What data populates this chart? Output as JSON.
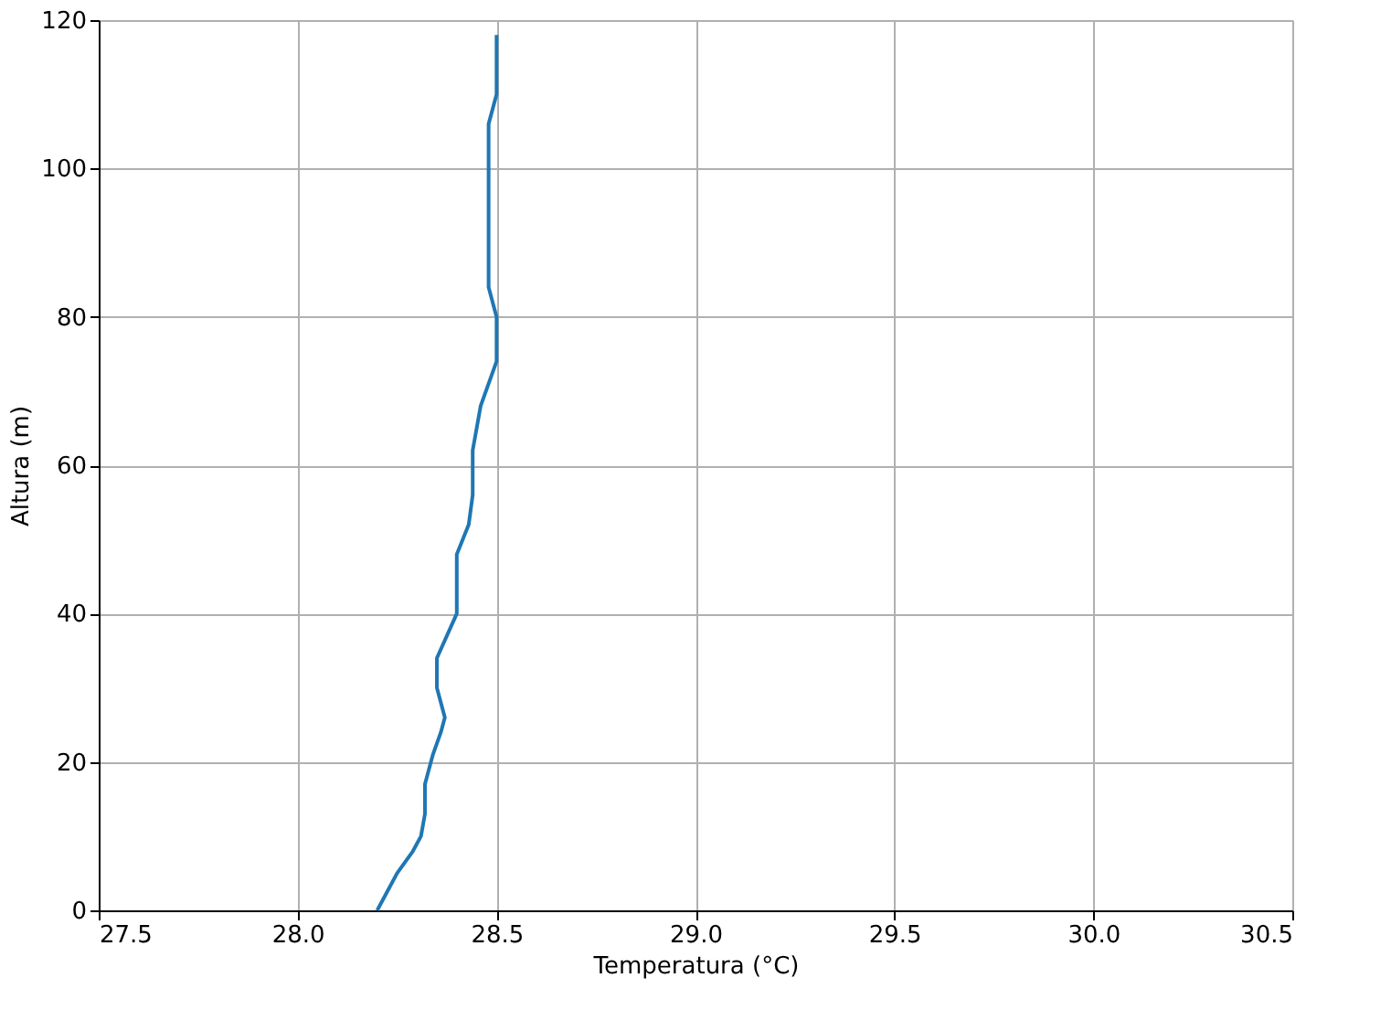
{
  "chart_data": {
    "type": "line",
    "xlabel": "Temperatura (°C)",
    "ylabel": "Altura (m)",
    "series": [
      {
        "color": "#1f77b4",
        "x": [
          28.2,
          28.22,
          28.25,
          28.29,
          28.31,
          28.32,
          28.32,
          28.34,
          28.36,
          28.37,
          28.35,
          28.35,
          28.4,
          28.4,
          28.43,
          28.44,
          28.44,
          28.46,
          28.5,
          28.5,
          28.48,
          28.48,
          28.5,
          28.5
        ],
        "values": [
          0,
          2,
          5,
          8,
          10,
          13,
          17,
          21,
          24,
          26,
          30,
          34,
          40,
          48,
          52,
          56,
          62,
          68,
          74,
          80,
          84,
          106,
          110,
          118
        ]
      }
    ],
    "xlim": [
      27.5,
      30.5
    ],
    "xticks": [
      {
        "value": 27.5,
        "label": "27.5"
      },
      {
        "value": 28,
        "label": "28.0"
      },
      {
        "value": 28.5,
        "label": "28.5"
      },
      {
        "value": 29,
        "label": "29.0"
      },
      {
        "value": 29.5,
        "label": "29.5"
      },
      {
        "value": 30,
        "label": "30.0"
      },
      {
        "value": 30.5,
        "label": "30.5"
      }
    ],
    "ylim": [
      0,
      120
    ],
    "yticks": [
      0,
      20,
      40,
      60,
      80,
      100,
      120
    ],
    "grid": true,
    "marker": "none",
    "line_style": "solid"
  }
}
